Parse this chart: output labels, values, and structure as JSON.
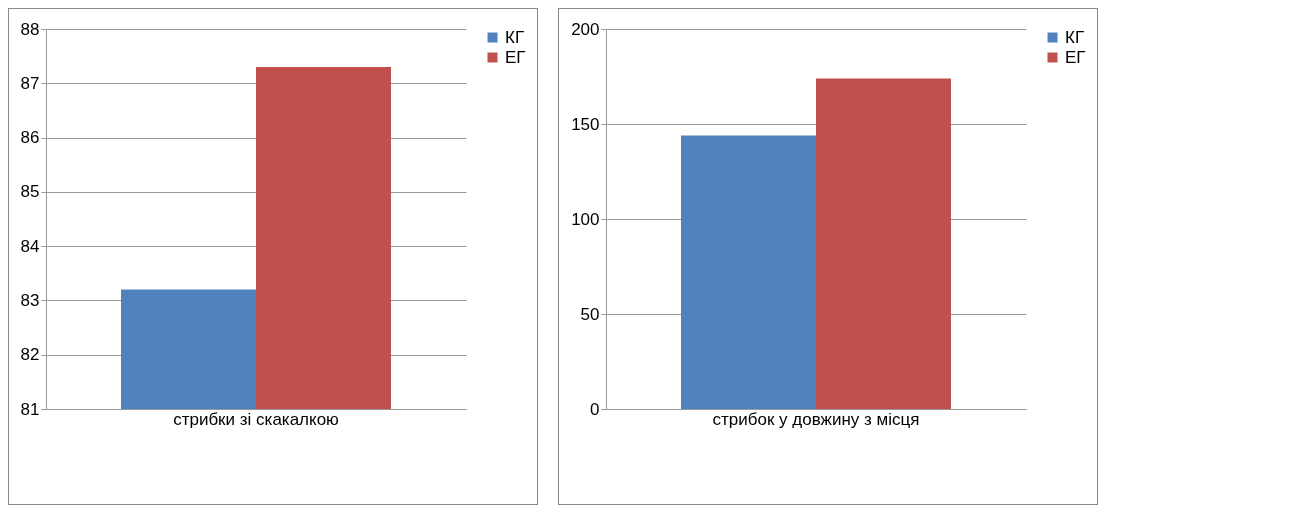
{
  "chart_data": [
    {
      "type": "bar",
      "categories": [
        "стрибки зі скакалкою"
      ],
      "series": [
        {
          "name": "КГ",
          "color": "#4f81bd",
          "values": [
            83.2
          ]
        },
        {
          "name": "ЕГ",
          "color": "#c0504d",
          "values": [
            87.3
          ]
        }
      ],
      "ylim": [
        81,
        88
      ],
      "yticks": [
        81,
        82,
        83,
        84,
        85,
        86,
        87,
        88
      ],
      "grid": "y",
      "legend": "right"
    },
    {
      "type": "bar",
      "categories": [
        "стрибок у довжину з місця"
      ],
      "series": [
        {
          "name": "КГ",
          "color": "#4f81bd",
          "values": [
            144
          ]
        },
        {
          "name": "ЕГ",
          "color": "#c0504d",
          "values": [
            174
          ]
        }
      ],
      "ylim": [
        0,
        200
      ],
      "yticks": [
        0,
        50,
        100,
        150,
        200
      ],
      "grid": "y",
      "legend": "right"
    }
  ]
}
